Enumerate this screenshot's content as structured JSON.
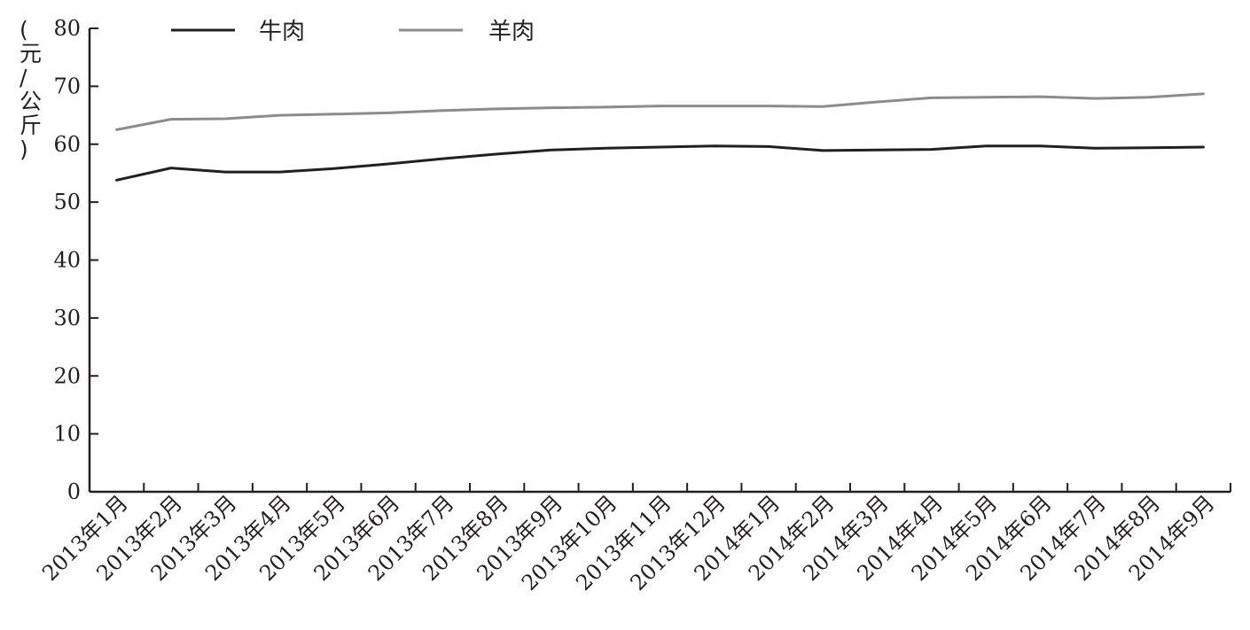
{
  "chart_data": {
    "type": "line",
    "ylabel": "(元/公斤)",
    "ylim": [
      0,
      80
    ],
    "yticks": [
      "0",
      "10",
      "20",
      "30",
      "40",
      "50",
      "60",
      "70",
      "80"
    ],
    "categories": [
      "2013年1月",
      "2013年2月",
      "2013年3月",
      "2013年4月",
      "2013年5月",
      "2013年6月",
      "2013年7月",
      "2013年8月",
      "2013年9月",
      "2013年10月",
      "2013年11月",
      "2013年12月",
      "2014年1月",
      "2014年2月",
      "2014年3月",
      "2014年4月",
      "2014年5月",
      "2014年6月",
      "2014年7月",
      "2014年8月",
      "2014年9月"
    ],
    "series": [
      {
        "name": "牛肉",
        "color": "#231f20",
        "values": [
          53.8,
          55.9,
          55.2,
          55.2,
          55.8,
          56.6,
          57.5,
          58.3,
          59.0,
          59.3,
          59.5,
          59.7,
          59.6,
          58.9,
          59.0,
          59.1,
          59.7,
          59.7,
          59.3,
          59.4,
          59.5
        ]
      },
      {
        "name": "羊肉",
        "color": "#8c8c8e",
        "values": [
          62.5,
          64.3,
          64.4,
          65.0,
          65.2,
          65.4,
          65.8,
          66.1,
          66.3,
          66.4,
          66.6,
          66.6,
          66.6,
          66.5,
          67.3,
          68.0,
          68.1,
          68.2,
          67.9,
          68.1,
          68.7
        ]
      }
    ],
    "legend": "top-left",
    "grid": false
  }
}
